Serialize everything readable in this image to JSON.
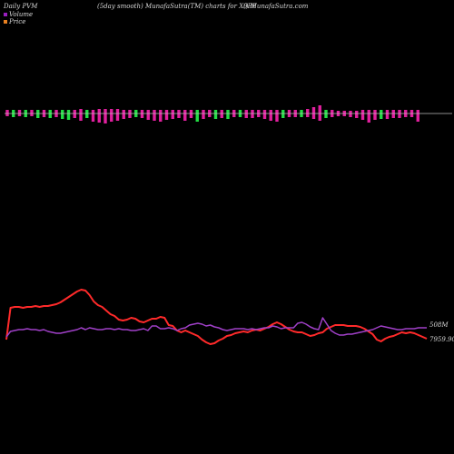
{
  "header": {
    "left": "Daily PVM",
    "center": "(5day smooth) MunafaSutra(TM) charts for X9BF",
    "right": "() MunafaSutra.com"
  },
  "legend": {
    "volume_label": "Volume",
    "price_label": "Price",
    "volume_color": "#9a1fbf",
    "price_color": "#e88020"
  },
  "colors": {
    "background": "#000000",
    "bar_up": "#e0209e",
    "bar_down": "#22dd44",
    "price_line": "#ff2a2a",
    "volume_line": "#a040c8",
    "zero_line": "#bbbbbb"
  },
  "chart_data": {
    "type": "line",
    "title": "",
    "xlabel": "",
    "ylabel": "",
    "legend_position": "top-left",
    "grid": false,
    "end_labels": {
      "volume": "508M",
      "price": "7959.90"
    },
    "pvm_bars": [
      {
        "dir": "up",
        "up": 4,
        "down": 3
      },
      {
        "dir": "down",
        "up": 4,
        "down": 4
      },
      {
        "dir": "up",
        "up": 4,
        "down": 3
      },
      {
        "dir": "down",
        "up": 4,
        "down": 4
      },
      {
        "dir": "up",
        "up": 4,
        "down": 3
      },
      {
        "dir": "down",
        "up": 4,
        "down": 5
      },
      {
        "dir": "up",
        "up": 4,
        "down": 4
      },
      {
        "dir": "down",
        "up": 4,
        "down": 5
      },
      {
        "dir": "up",
        "up": 4,
        "down": 4
      },
      {
        "dir": "down",
        "up": 4,
        "down": 6
      },
      {
        "dir": "down",
        "up": 4,
        "down": 7
      },
      {
        "dir": "up",
        "up": 4,
        "down": 5
      },
      {
        "dir": "up",
        "up": 5,
        "down": 8
      },
      {
        "dir": "down",
        "up": 4,
        "down": 5
      },
      {
        "dir": "up",
        "up": 4,
        "down": 9
      },
      {
        "dir": "up",
        "up": 5,
        "down": 10
      },
      {
        "dir": "up",
        "up": 5,
        "down": 11
      },
      {
        "dir": "up",
        "up": 5,
        "down": 9
      },
      {
        "dir": "up",
        "up": 5,
        "down": 8
      },
      {
        "dir": "up",
        "up": 4,
        "down": 6
      },
      {
        "dir": "up",
        "up": 4,
        "down": 5
      },
      {
        "dir": "down",
        "up": 4,
        "down": 4
      },
      {
        "dir": "up",
        "up": 4,
        "down": 5
      },
      {
        "dir": "up",
        "up": 4,
        "down": 7
      },
      {
        "dir": "up",
        "up": 4,
        "down": 8
      },
      {
        "dir": "up",
        "up": 4,
        "down": 9
      },
      {
        "dir": "up",
        "up": 4,
        "down": 7
      },
      {
        "dir": "up",
        "up": 4,
        "down": 6
      },
      {
        "dir": "up",
        "up": 4,
        "down": 5
      },
      {
        "dir": "up",
        "up": 4,
        "down": 8
      },
      {
        "dir": "up",
        "up": 4,
        "down": 5
      },
      {
        "dir": "down",
        "up": 4,
        "down": 9
      },
      {
        "dir": "up",
        "up": 4,
        "down": 6
      },
      {
        "dir": "up",
        "up": 4,
        "down": 4
      },
      {
        "dir": "down",
        "up": 4,
        "down": 6
      },
      {
        "dir": "up",
        "up": 4,
        "down": 5
      },
      {
        "dir": "down",
        "up": 4,
        "down": 6
      },
      {
        "dir": "up",
        "up": 4,
        "down": 4
      },
      {
        "dir": "down",
        "up": 4,
        "down": 4
      },
      {
        "dir": "up",
        "up": 4,
        "down": 5
      },
      {
        "dir": "up",
        "up": 4,
        "down": 5
      },
      {
        "dir": "up",
        "up": 4,
        "down": 4
      },
      {
        "dir": "up",
        "up": 4,
        "down": 6
      },
      {
        "dir": "up",
        "up": 4,
        "down": 8
      },
      {
        "dir": "up",
        "up": 4,
        "down": 9
      },
      {
        "dir": "down",
        "up": 4,
        "down": 5
      },
      {
        "dir": "up",
        "up": 4,
        "down": 4
      },
      {
        "dir": "up",
        "up": 4,
        "down": 4
      },
      {
        "dir": "down",
        "up": 4,
        "down": 4
      },
      {
        "dir": "up",
        "up": 5,
        "down": 4
      },
      {
        "dir": "up",
        "up": 7,
        "down": 6
      },
      {
        "dir": "up",
        "up": 9,
        "down": 8
      },
      {
        "dir": "down",
        "up": 4,
        "down": 5
      },
      {
        "dir": "up",
        "up": 4,
        "down": 4
      },
      {
        "dir": "up",
        "up": 3,
        "down": 3
      },
      {
        "dir": "up",
        "up": 3,
        "down": 3
      },
      {
        "dir": "up",
        "up": 3,
        "down": 4
      },
      {
        "dir": "up",
        "up": 3,
        "down": 5
      },
      {
        "dir": "up",
        "up": 4,
        "down": 7
      },
      {
        "dir": "up",
        "up": 4,
        "down": 10
      },
      {
        "dir": "up",
        "up": 4,
        "down": 7
      },
      {
        "dir": "down",
        "up": 4,
        "down": 6
      },
      {
        "dir": "up",
        "up": 4,
        "down": 6
      },
      {
        "dir": "up",
        "up": 4,
        "down": 5
      },
      {
        "dir": "up",
        "up": 4,
        "down": 5
      },
      {
        "dir": "up",
        "up": 4,
        "down": 4
      },
      {
        "dir": "up",
        "up": 4,
        "down": 4
      },
      {
        "dir": "up",
        "up": 4,
        "down": 9
      }
    ],
    "series": [
      {
        "key": "price",
        "color": "#ff2a2a",
        "values": [
          374,
          339,
          338,
          338,
          339,
          338,
          338,
          337,
          338,
          337,
          337,
          336,
          335,
          333,
          330,
          327,
          324,
          321,
          319,
          320,
          325,
          332,
          336,
          338,
          342,
          346,
          348,
          352,
          353,
          352,
          350,
          351,
          354,
          355,
          353,
          351,
          351,
          349,
          350,
          358,
          359,
          364,
          366,
          364,
          366,
          368,
          370,
          374,
          377,
          379,
          378,
          375,
          373,
          370,
          369,
          367,
          366,
          365,
          366,
          364,
          363,
          364,
          362,
          360,
          357,
          355,
          357,
          360,
          363,
          365,
          366,
          366,
          368,
          370,
          369,
          367,
          366,
          362,
          360,
          358,
          358,
          358,
          359,
          359,
          359,
          360,
          362,
          365,
          368,
          374,
          376,
          373,
          371,
          370,
          368,
          366,
          367,
          366,
          367,
          369,
          371,
          373
        ]
      },
      {
        "key": "volume",
        "color": "#a040c8",
        "values": [
          371,
          365,
          364,
          363,
          363,
          362,
          363,
          363,
          364,
          363,
          365,
          366,
          367,
          367,
          366,
          365,
          364,
          363,
          361,
          363,
          361,
          362,
          363,
          363,
          362,
          362,
          363,
          362,
          363,
          363,
          364,
          364,
          363,
          362,
          364,
          359,
          359,
          362,
          362,
          361,
          362,
          364,
          362,
          361,
          358,
          357,
          356,
          357,
          359,
          358,
          360,
          361,
          363,
          364,
          363,
          362,
          362,
          362,
          363,
          362,
          363,
          362,
          361,
          361,
          359,
          360,
          362,
          361,
          361,
          361,
          356,
          355,
          357,
          360,
          362,
          363,
          350,
          357,
          364,
          367,
          369,
          369,
          368,
          368,
          367,
          366,
          365,
          364,
          363,
          361,
          359,
          360,
          361,
          362,
          363,
          363,
          362,
          362,
          362,
          361,
          361,
          361
        ]
      }
    ]
  }
}
